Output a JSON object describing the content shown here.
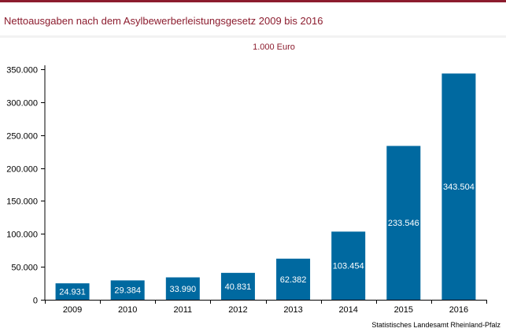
{
  "header": {
    "title": "Nettoausgaben nach dem Asylbewerberleistungsgesetz 2009 bis 2016"
  },
  "colors": {
    "accent": "#8c1c2e",
    "bar": "#0069a0",
    "background": "#f2f2f2"
  },
  "chart_data": {
    "type": "bar",
    "title": "Nettoausgaben nach dem Asylbewerberleistungsgesetz 2009 bis 2016",
    "unit_label": "1.000 Euro",
    "xlabel": "",
    "ylabel": "",
    "categories": [
      "2009",
      "2010",
      "2011",
      "2012",
      "2013",
      "2014",
      "2015",
      "2016"
    ],
    "values": [
      24931,
      29384,
      33990,
      40831,
      62382,
      103454,
      233546,
      343504
    ],
    "value_labels": [
      "24.931",
      "29.384",
      "33.990",
      "40.831",
      "62.382",
      "103.454",
      "233.546",
      "343.504"
    ],
    "ylim": [
      0,
      350000
    ],
    "yticks": [
      0,
      50000,
      100000,
      150000,
      200000,
      250000,
      300000,
      350000
    ],
    "ytick_labels": [
      "0",
      "50.000",
      "100.000",
      "150.000",
      "200.000",
      "250.000",
      "300.000",
      "350.000"
    ],
    "grid": false,
    "legend": "none",
    "source": "Statistisches Landesamt Rheinland-Pfalz"
  }
}
